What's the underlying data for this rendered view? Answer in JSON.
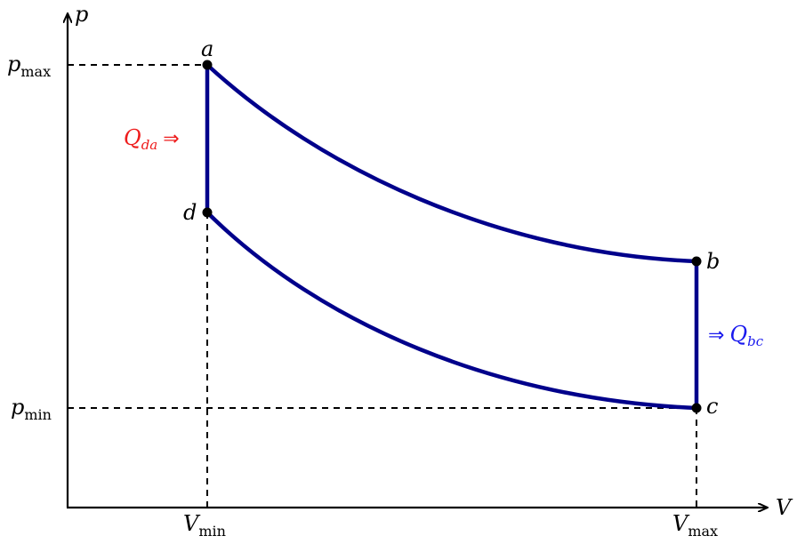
{
  "axes": {
    "x_label": "V",
    "y_label": "p",
    "x_ticks": [
      {
        "main": "V",
        "sub": "min"
      },
      {
        "main": "V",
        "sub": "max"
      }
    ],
    "y_ticks": [
      {
        "main": "p",
        "sub": "max"
      },
      {
        "main": "p",
        "sub": "min"
      }
    ]
  },
  "states": [
    {
      "id": "a",
      "V": 1,
      "p": 3
    },
    {
      "id": "b",
      "V": 3,
      "p": 1.5
    },
    {
      "id": "c",
      "V": 3,
      "p": 0.75
    },
    {
      "id": "d",
      "V": 1,
      "p": 2.25
    }
  ],
  "processes": [
    {
      "from": "a",
      "to": "b",
      "kind": "curve"
    },
    {
      "from": "b",
      "to": "c",
      "kind": "isochoric"
    },
    {
      "from": "c",
      "to": "d",
      "kind": "curve"
    },
    {
      "from": "d",
      "to": "a",
      "kind": "isochoric"
    }
  ],
  "heat_labels": {
    "in": {
      "arrow": "⇒",
      "main": "Q",
      "sub": "da",
      "color": "#ee1c1c"
    },
    "out": {
      "arrow": "⇒",
      "main": "Q",
      "sub": "bc",
      "color": "#1a1aee"
    }
  },
  "colors": {
    "cycle": "#00008b",
    "axis": "#000000"
  }
}
